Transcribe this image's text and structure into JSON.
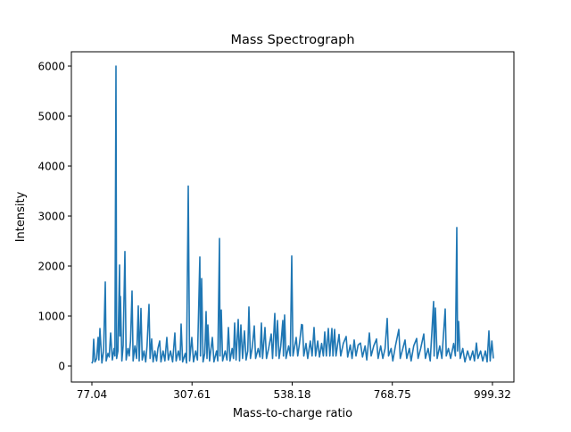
{
  "chart_data": {
    "type": "line",
    "title": "Mass Spectrograph",
    "xlabel": "Mass-to-charge ratio",
    "ylabel": "Intensity",
    "xlim": [
      29.8,
      1048.7
    ],
    "ylim": [
      -321,
      6286
    ],
    "xticks": [
      77.04,
      307.61,
      538.18,
      768.75,
      999.32
    ],
    "xtick_labels": [
      "77.04",
      "307.61",
      "538.18",
      "768.75",
      "999.32"
    ],
    "yticks": [
      0,
      1000,
      2000,
      3000,
      4000,
      5000,
      6000
    ],
    "ytick_labels": [
      "0",
      "1000",
      "2000",
      "3000",
      "4000",
      "5000",
      "6000"
    ],
    "grid": false,
    "color": "#1f77b4",
    "points": [
      [
        77.0,
        50
      ],
      [
        79,
        100
      ],
      [
        81.1,
        536
      ],
      [
        84,
        80
      ],
      [
        88,
        150
      ],
      [
        91.4,
        570
      ],
      [
        93,
        120
      ],
      [
        95.5,
        750
      ],
      [
        100,
        60
      ],
      [
        104,
        300
      ],
      [
        107.9,
        1680
      ],
      [
        110,
        100
      ],
      [
        114,
        250
      ],
      [
        117,
        180
      ],
      [
        120.2,
        660
      ],
      [
        124,
        120
      ],
      [
        128,
        350
      ],
      [
        130,
        200
      ],
      [
        132.5,
        6000
      ],
      [
        134,
        150
      ],
      [
        137,
        300
      ],
      [
        140.7,
        2020
      ],
      [
        141.5,
        600
      ],
      [
        142.8,
        1390
      ],
      [
        146,
        100
      ],
      [
        149,
        400
      ],
      [
        153,
        2290
      ],
      [
        156,
        120
      ],
      [
        160,
        350
      ],
      [
        163,
        200
      ],
      [
        166,
        500
      ],
      [
        169.5,
        1500
      ],
      [
        172,
        100
      ],
      [
        176,
        400
      ],
      [
        180,
        150
      ],
      [
        183.9,
        1200
      ],
      [
        186,
        100
      ],
      [
        190,
        1150
      ],
      [
        193,
        120
      ],
      [
        197,
        300
      ],
      [
        201,
        80
      ],
      [
        204,
        400
      ],
      [
        208.5,
        1230
      ],
      [
        211,
        150
      ],
      [
        214.7,
        540
      ],
      [
        218,
        80
      ],
      [
        222,
        300
      ],
      [
        226,
        100
      ],
      [
        229,
        350
      ],
      [
        233.2,
        500
      ],
      [
        236,
        80
      ],
      [
        241,
        300
      ],
      [
        245,
        100
      ],
      [
        249.6,
        570
      ],
      [
        253,
        120
      ],
      [
        258,
        300
      ],
      [
        263,
        80
      ],
      [
        268.1,
        660
      ],
      [
        271,
        100
      ],
      [
        276,
        300
      ],
      [
        280,
        120
      ],
      [
        282.5,
        840
      ],
      [
        286,
        80
      ],
      [
        292,
        250
      ],
      [
        295,
        60
      ],
      [
        299,
        3600
      ],
      [
        302,
        100
      ],
      [
        307.1,
        570
      ],
      [
        311,
        80
      ],
      [
        316,
        300
      ],
      [
        320,
        120
      ],
      [
        325.6,
        2180
      ],
      [
        327,
        200
      ],
      [
        329.7,
        1750
      ],
      [
        333,
        80
      ],
      [
        337,
        250
      ],
      [
        340,
        1090
      ],
      [
        342,
        150
      ],
      [
        344.1,
        820
      ],
      [
        348,
        100
      ],
      [
        354.4,
        570
      ],
      [
        358,
        80
      ],
      [
        364,
        300
      ],
      [
        367,
        100
      ],
      [
        370.8,
        2550
      ],
      [
        372,
        200
      ],
      [
        374.9,
        1120
      ],
      [
        378,
        100
      ],
      [
        384,
        300
      ],
      [
        388,
        120
      ],
      [
        391.3,
        770
      ],
      [
        395,
        100
      ],
      [
        400,
        350
      ],
      [
        403,
        150
      ],
      [
        405.7,
        860
      ],
      [
        409,
        120
      ],
      [
        413.9,
        930
      ],
      [
        417,
        100
      ],
      [
        420.1,
        820
      ],
      [
        424,
        150
      ],
      [
        428.3,
        700
      ],
      [
        432,
        120
      ],
      [
        436,
        300
      ],
      [
        438.6,
        1180
      ],
      [
        442,
        150
      ],
      [
        446,
        350
      ],
      [
        450.9,
        800
      ],
      [
        454,
        150
      ],
      [
        460,
        350
      ],
      [
        464,
        180
      ],
      [
        467.4,
        860
      ],
      [
        470,
        150
      ],
      [
        475.6,
        770
      ],
      [
        479,
        150
      ],
      [
        484,
        350
      ],
      [
        489.9,
        640
      ],
      [
        493,
        150
      ],
      [
        498.2,
        1050
      ],
      [
        501,
        200
      ],
      [
        504.3,
        910
      ],
      [
        508,
        150
      ],
      [
        512,
        400
      ],
      [
        516.6,
        910
      ],
      [
        518,
        200
      ],
      [
        520.8,
        1020
      ],
      [
        524,
        150
      ],
      [
        530,
        400
      ],
      [
        534,
        200
      ],
      [
        537.2,
        2200
      ],
      [
        540,
        200
      ],
      [
        547.5,
        570
      ],
      [
        551,
        200
      ],
      [
        555,
        450
      ],
      [
        559.8,
        830
      ],
      [
        561.9,
        820
      ],
      [
        565,
        200
      ],
      [
        570,
        450
      ],
      [
        574,
        150
      ],
      [
        580,
        500
      ],
      [
        584,
        200
      ],
      [
        588.6,
        770
      ],
      [
        592,
        200
      ],
      [
        597,
        500
      ],
      [
        601,
        180
      ],
      [
        606,
        450
      ],
      [
        610,
        200
      ],
      [
        613.2,
        680
      ],
      [
        617,
        200
      ],
      [
        621.4,
        750
      ],
      [
        625,
        200
      ],
      [
        629.6,
        750
      ],
      [
        632,
        200
      ],
      [
        635.8,
        730
      ],
      [
        639,
        200
      ],
      [
        646.1,
        630
      ],
      [
        650,
        200
      ],
      [
        656,
        450
      ],
      [
        662.5,
        590
      ],
      [
        666,
        180
      ],
      [
        672,
        420
      ],
      [
        676,
        150
      ],
      [
        681,
        520
      ],
      [
        685,
        200
      ],
      [
        690,
        420
      ],
      [
        695.4,
        460
      ],
      [
        700,
        180
      ],
      [
        706,
        400
      ],
      [
        710,
        120
      ],
      [
        715.9,
        660
      ],
      [
        720,
        200
      ],
      [
        726,
        400
      ],
      [
        732.4,
        540
      ],
      [
        736,
        150
      ],
      [
        742,
        400
      ],
      [
        747,
        150
      ],
      [
        752,
        350
      ],
      [
        757,
        950
      ],
      [
        760,
        200
      ],
      [
        766,
        350
      ],
      [
        770,
        100
      ],
      [
        776,
        400
      ],
      [
        783.7,
        730
      ],
      [
        787,
        150
      ],
      [
        793,
        350
      ],
      [
        798.1,
        520
      ],
      [
        802,
        150
      ],
      [
        808,
        350
      ],
      [
        812,
        100
      ],
      [
        818,
        400
      ],
      [
        824.8,
        550
      ],
      [
        828,
        150
      ],
      [
        834,
        350
      ],
      [
        841.2,
        640
      ],
      [
        845,
        150
      ],
      [
        851,
        350
      ],
      [
        856,
        100
      ],
      [
        863.8,
        1290
      ],
      [
        865,
        200
      ],
      [
        867.9,
        1160
      ],
      [
        872,
        150
      ],
      [
        878,
        400
      ],
      [
        883,
        150
      ],
      [
        890.5,
        1140
      ],
      [
        893,
        200
      ],
      [
        898,
        350
      ],
      [
        903,
        150
      ],
      [
        910,
        450
      ],
      [
        914,
        200
      ],
      [
        917.2,
        2770
      ],
      [
        919,
        300
      ],
      [
        921.3,
        890
      ],
      [
        925,
        150
      ],
      [
        931,
        350
      ],
      [
        936,
        80
      ],
      [
        942,
        300
      ],
      [
        948,
        120
      ],
      [
        954,
        300
      ],
      [
        958,
        100
      ],
      [
        962.4,
        460
      ],
      [
        966,
        150
      ],
      [
        972,
        300
      ],
      [
        977,
        100
      ],
      [
        983,
        300
      ],
      [
        987,
        80
      ],
      [
        991.2,
        700
      ],
      [
        994,
        100
      ],
      [
        998,
        500
      ],
      [
        1001.5,
        150
      ]
    ]
  }
}
